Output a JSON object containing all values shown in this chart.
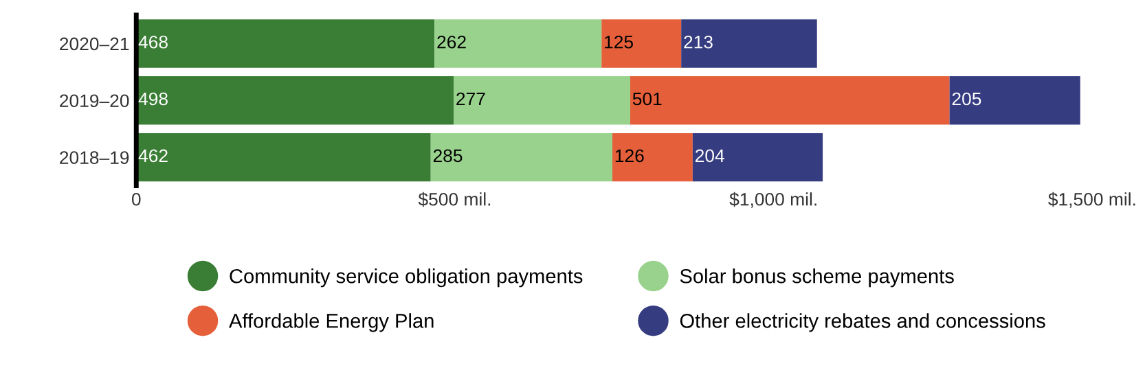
{
  "chart_data": {
    "type": "bar",
    "orientation": "horizontal",
    "stacked": true,
    "data_labels": true,
    "legend": "bottom",
    "grid": false,
    "marker": "circle",
    "categories": [
      "2020–21",
      "2019–20",
      "2018–19"
    ],
    "series": [
      {
        "name": "Community service obligation payments",
        "color": "#3a7d34",
        "values": [
          468,
          498,
          462
        ]
      },
      {
        "name": "Solar bonus scheme payments",
        "color": "#98d28c",
        "values": [
          262,
          277,
          285
        ]
      },
      {
        "name": "Affordable Energy Plan",
        "color": "#e5603a",
        "values": [
          125,
          501,
          126
        ]
      },
      {
        "name": "Other electricity rebates and concessions",
        "color": "#363c80",
        "values": [
          213,
          205,
          204
        ]
      }
    ],
    "xlim": [
      0,
      1500
    ],
    "xticks": [
      0,
      {
        "value": 500,
        "label": "$500 mil."
      },
      {
        "value": 1000,
        "label": "$1,000 mil."
      },
      {
        "value": 1500,
        "label": "$1,500 mil."
      }
    ]
  }
}
